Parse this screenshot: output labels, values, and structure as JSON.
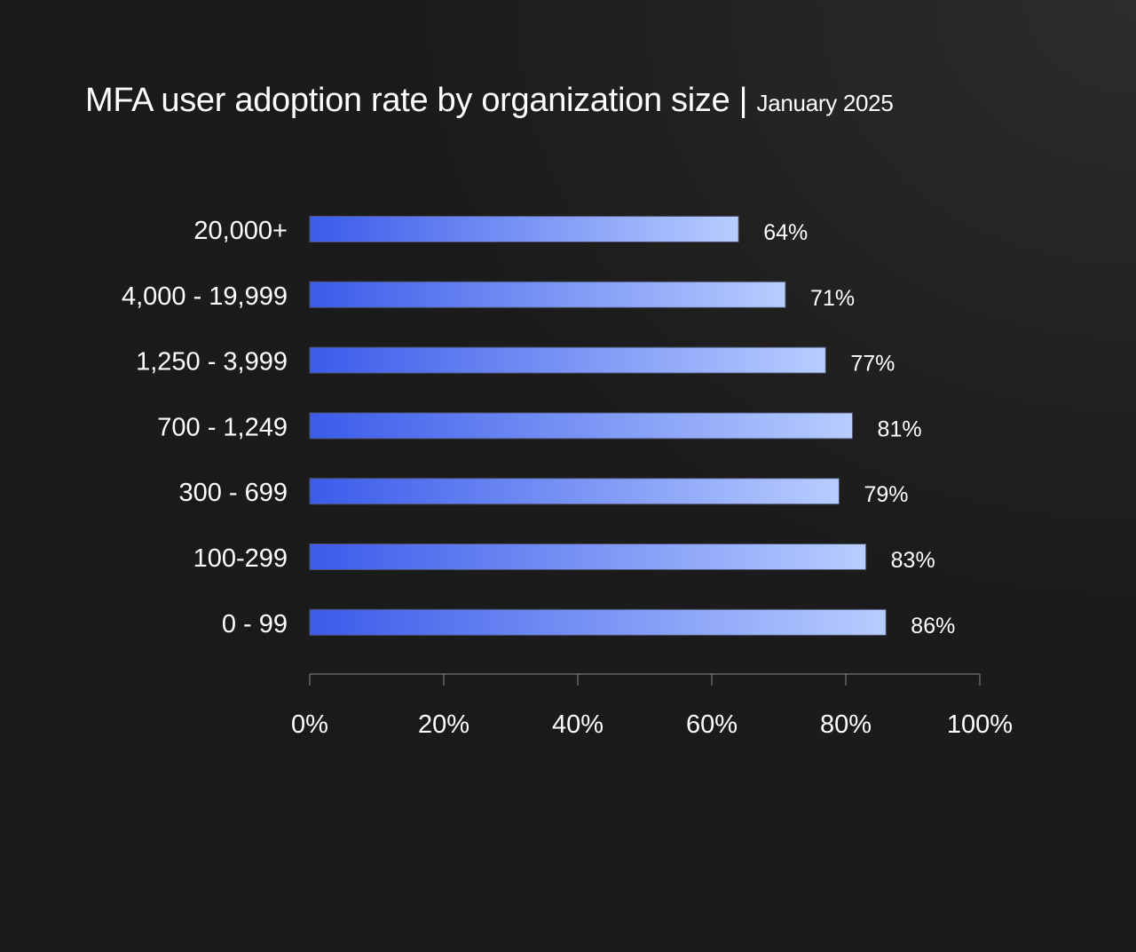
{
  "chart_data": {
    "type": "bar",
    "orientation": "horizontal",
    "title": "MFA user adoption rate by organization size",
    "subtitle": "January 2025",
    "categories": [
      "20,000+",
      "4,000 - 19,999",
      "1,250 - 3,999",
      "700 - 1,249",
      "300 - 699",
      "100-299",
      "0 - 99"
    ],
    "values": [
      64,
      71,
      77,
      81,
      79,
      83,
      86
    ],
    "data_labels": [
      "64%",
      "71%",
      "77%",
      "81%",
      "79%",
      "83%",
      "86%"
    ],
    "xlim": [
      0,
      100
    ],
    "x_ticks": [
      0,
      20,
      40,
      60,
      80,
      100
    ],
    "x_tick_labels": [
      "0%",
      "20%",
      "40%",
      "60%",
      "80%",
      "100%"
    ],
    "grid": false,
    "colors": {
      "bar_start": "#3b5bea",
      "bar_end": "#b8cdff",
      "background": "#1a1a1a",
      "text": "#ffffff",
      "axis": "#8a8a8a"
    }
  }
}
